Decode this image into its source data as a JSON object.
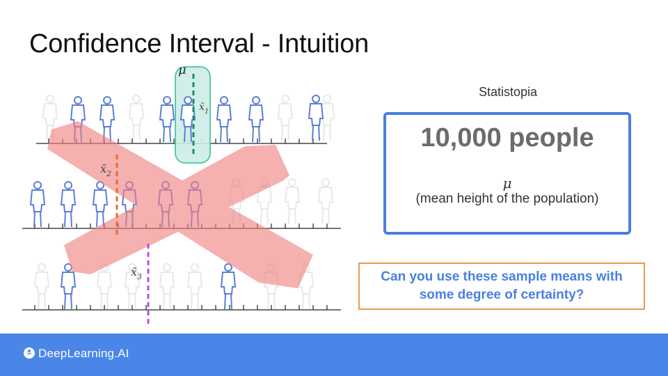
{
  "slide": {
    "title": "Confidence Interval - Intuition"
  },
  "diagram": {
    "population_mean_label": "μ",
    "sample_labels": [
      {
        "name": "x̄",
        "sub": "1"
      },
      {
        "name": "x̄",
        "sub": "2"
      },
      {
        "name": "x̄",
        "sub": "3"
      }
    ],
    "colors": {
      "person_highlight": "#5b7fd6",
      "person_faded": "#eaeaea",
      "mean_line_mu": "#1a8a6e",
      "interval_box_fill": "#cdeee6",
      "interval_box_stroke": "#4cc1a6",
      "sample2_mean": "#ea6a2c",
      "sample3_mean": "#b84de0",
      "cross_mark": "#f08080"
    }
  },
  "population": {
    "name": "Statistopia",
    "count_label": "10,000 people",
    "parameter_symbol": "μ",
    "parameter_desc": "(mean height of the population)"
  },
  "question": {
    "text": "Can you use these sample means with some degree of certainty?"
  },
  "footer": {
    "brand": "DeepLearning.AI",
    "color": "#4a86e8"
  }
}
